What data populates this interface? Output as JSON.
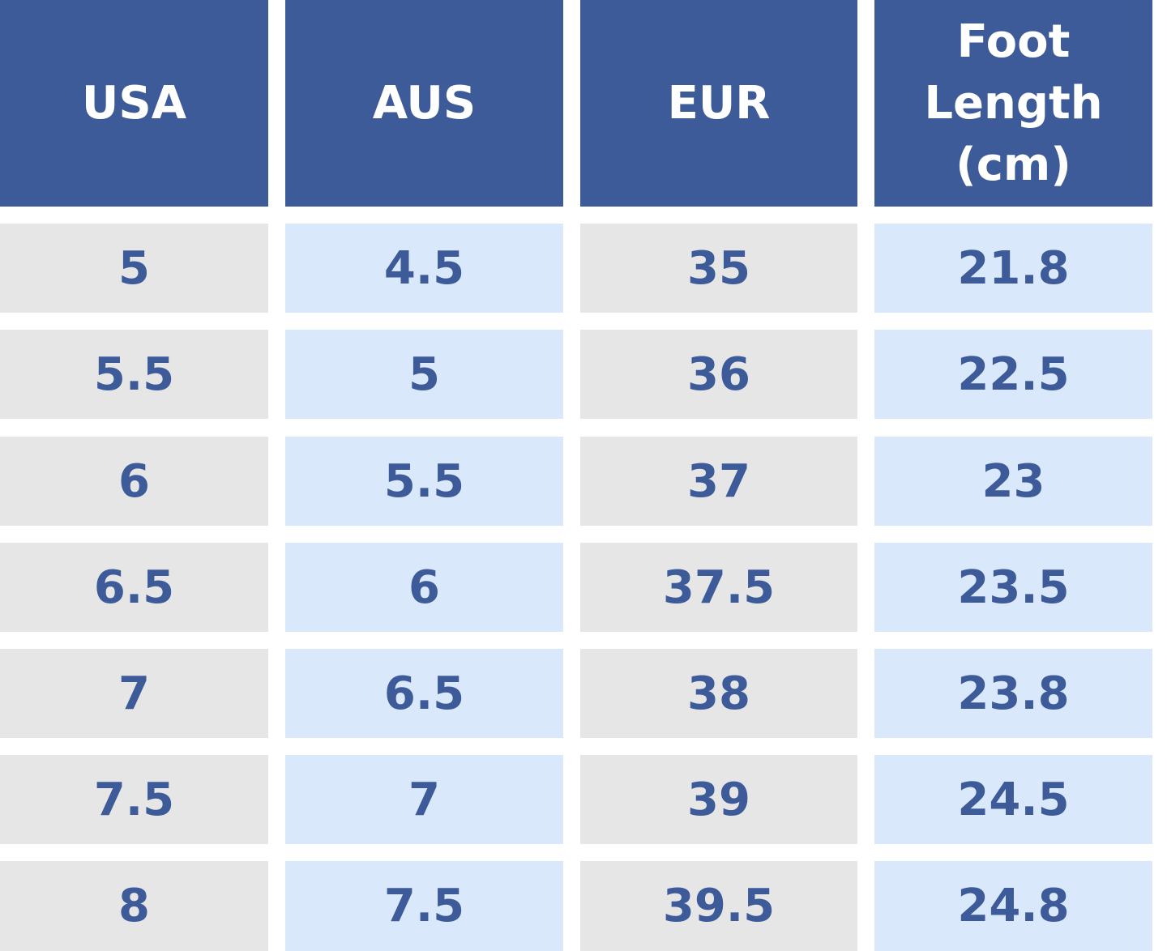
{
  "table": {
    "headers": [
      [
        "USA"
      ],
      [
        "AUS"
      ],
      [
        "EUR"
      ],
      [
        "Foot",
        "Length",
        "(cm)"
      ]
    ],
    "rows": [
      [
        "5",
        "4.5",
        "35",
        "21.8"
      ],
      [
        "5.5",
        "5",
        "36",
        "22.5"
      ],
      [
        "6",
        "5.5",
        "37",
        "23"
      ],
      [
        "6.5",
        "6",
        "37.5",
        "23.5"
      ],
      [
        "7",
        "6.5",
        "38",
        "23.8"
      ],
      [
        "7.5",
        "7",
        "39",
        "24.5"
      ],
      [
        "8",
        "7.5",
        "39.5",
        "24.8"
      ]
    ]
  },
  "colors": {
    "header_bg": "#3d5a99",
    "header_text": "#ffffff",
    "cell_text": "#3d5a99",
    "gray_cell": "#e6e6e6",
    "blue_cell": "#dae8fc"
  }
}
